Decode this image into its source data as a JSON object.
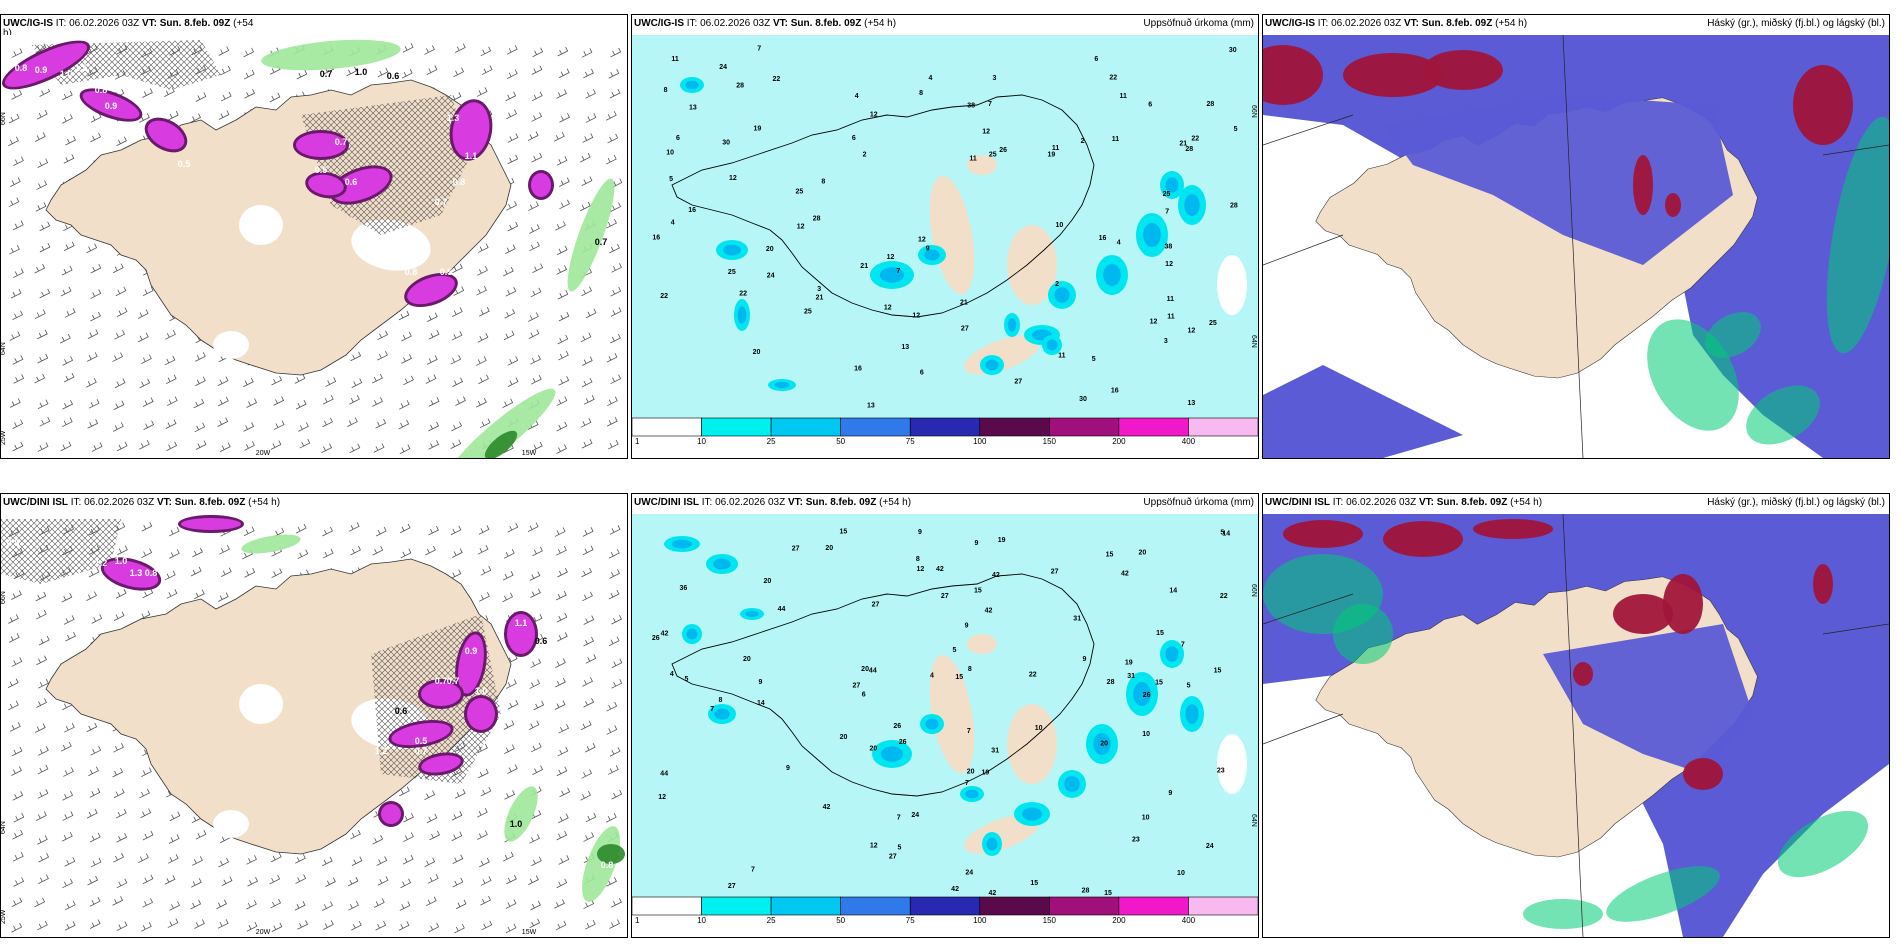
{
  "colors": {
    "land": "#f2dfc9",
    "sea_precip": "#b7f6f6",
    "precip_10": "#00e6f0",
    "precip_25": "#00b8f0",
    "high_cloud": "#5b5bd6",
    "mid_cloud": "#a0153a",
    "low_cloud": "#00cc77",
    "snow": "#d83ce0",
    "green_precip": "#9ee89a"
  },
  "panels": [
    {
      "id": "uwc-igs-precip-type",
      "model": "UWC/IG-IS",
      "init": "IT: 06.02.2026 03Z",
      "valid": "VT: Sun. 8.feb. 09Z",
      "lead": "(+54",
      "lead2": "h)",
      "right": "",
      "lat_labels": [
        "66N",
        "64N",
        "25W"
      ],
      "lon_labels": [
        "20W",
        "15W"
      ],
      "values": [
        "0.8",
        "0.9",
        "1.3",
        "1.0",
        "1.5",
        "0.8",
        "0.9",
        "0.6",
        "0.7",
        "1.0",
        "0.6",
        "0.5",
        "1.3",
        "0.9",
        "0.8",
        "0.7",
        "0.6",
        "0.5",
        "0.7",
        "1.1",
        "0.7",
        "0.8",
        "0.5"
      ]
    },
    {
      "id": "uwc-igs-accum",
      "model": "UWC/IG-IS",
      "init": "IT: 06.02.2026 03Z",
      "valid": "VT: Sun. 8.feb. 09Z",
      "lead": "(+54 h)",
      "right": "Uppsöfnuð úrkoma (mm)",
      "lat_labels": [
        "66N",
        "64N"
      ],
      "values": [
        "13",
        "11",
        "10",
        "12",
        "5",
        "7",
        "9",
        "5",
        "4",
        "3",
        "8",
        "6",
        "7",
        "5",
        "10",
        "11",
        "30",
        "38",
        "13",
        "25",
        "27",
        "21",
        "22",
        "26",
        "28",
        "14",
        "25",
        "19",
        "16",
        "22",
        "12",
        "24",
        "20",
        "13",
        "11",
        "8",
        "6",
        "4",
        "2"
      ],
      "colorbar": [
        "1",
        "10",
        "25",
        "50",
        "75",
        "100",
        "150",
        "200",
        "400"
      ]
    },
    {
      "id": "uwc-igs-cloud",
      "model": "UWC/IG-IS",
      "init": "IT: 06.02.2026 03Z",
      "valid": "VT: Sun. 8.feb. 09Z",
      "lead": "(+54 h)",
      "right": "Háský (gr.), miðský (fj.bl.) og lágský (bl.)"
    },
    {
      "id": "uwc-dini-precip-type",
      "model": "UWC/DINI ISL",
      "init": "IT: 06.02.2026 03Z",
      "valid": "VT: Sun. 8.feb. 09Z",
      "lead": "(+54 h)",
      "right": "",
      "lat_labels": [
        "66N",
        "64N",
        "25W"
      ],
      "lon_labels": [
        "20W",
        "15W"
      ],
      "values": [
        "0.8",
        "1.2",
        "1.0",
        "1.3",
        "0.8",
        "0.9",
        "1.1",
        "0.7",
        "0.5",
        "0.6",
        "1.2",
        "0.7",
        "1.0",
        "0.8",
        "0.7",
        "1.0",
        "0.6"
      ]
    },
    {
      "id": "uwc-dini-accum",
      "model": "UWC/DINI ISL",
      "init": "IT: 06.02.2026 03Z",
      "valid": "VT: Sun. 8.feb. 09Z",
      "lead": "(+54 h)",
      "right": "Uppsöfnuð úrkoma (mm)",
      "lat_labels": [
        "66N",
        "64N"
      ],
      "values": [
        "10",
        "11",
        "12",
        "22",
        "15",
        "14",
        "9",
        "5",
        "3",
        "20",
        "28",
        "19",
        "27",
        "42",
        "19",
        "42",
        "26",
        "27",
        "23",
        "29",
        "44",
        "36",
        "15",
        "20",
        "28",
        "31",
        "24",
        "4",
        "6",
        "8",
        "7"
      ],
      "colorbar": [
        "1",
        "10",
        "25",
        "50",
        "75",
        "100",
        "150",
        "200",
        "400"
      ]
    },
    {
      "id": "uwc-dini-cloud",
      "model": "UWC/DINI ISL",
      "init": "IT: 06.02.2026 03Z",
      "valid": "VT: Sun. 8.feb. 09Z",
      "lead": "(+54 h)",
      "right": "Háský (gr.), miðský (fj.bl.) og lágský (bl.)"
    }
  ]
}
